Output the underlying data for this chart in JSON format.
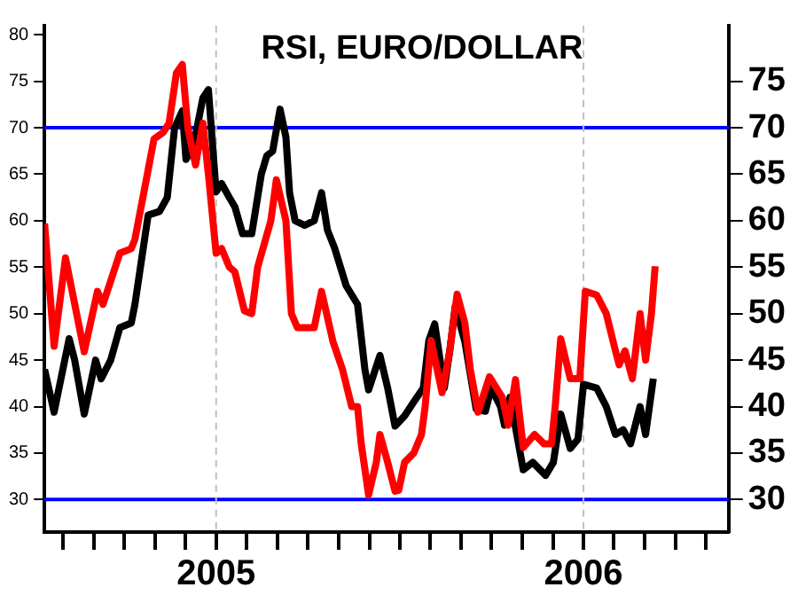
{
  "chart_data": {
    "type": "line",
    "title": "RSI, EURO/DOLLAR",
    "xlim": [
      2004.533,
      2006.395
    ],
    "xticks": [
      {
        "value": 2004.583,
        "label": null
      },
      {
        "value": 2004.667,
        "label": null
      },
      {
        "value": 2004.75,
        "label": null
      },
      {
        "value": 2004.833,
        "label": null
      },
      {
        "value": 2004.917,
        "label": null
      },
      {
        "value": 2005,
        "label": "2005"
      },
      {
        "value": 2005.083,
        "label": null
      },
      {
        "value": 2005.167,
        "label": null
      },
      {
        "value": 2005.25,
        "label": null
      },
      {
        "value": 2005.333,
        "label": null
      },
      {
        "value": 2005.417,
        "label": null
      },
      {
        "value": 2005.5,
        "label": null
      },
      {
        "value": 2005.583,
        "label": null
      },
      {
        "value": 2005.667,
        "label": null
      },
      {
        "value": 2005.75,
        "label": null
      },
      {
        "value": 2005.833,
        "label": null
      },
      {
        "value": 2005.917,
        "label": null
      },
      {
        "value": 2006,
        "label": "2006"
      },
      {
        "value": 2006.083,
        "label": null
      },
      {
        "value": 2006.167,
        "label": null
      },
      {
        "value": 2006.25,
        "label": null
      },
      {
        "value": 2006.333,
        "label": null
      }
    ],
    "ylim": [
      26.5,
      81
    ],
    "yticks": [
      30,
      35,
      40,
      45,
      50,
      55,
      60,
      65,
      70,
      75,
      80
    ],
    "y2lim": [
      26.5,
      81
    ],
    "y2ticks": [
      30,
      35,
      40,
      45,
      50,
      55,
      60,
      65,
      70,
      75
    ],
    "grid": false,
    "legend": false,
    "marker": "none",
    "line_style": "solid",
    "ref_lines": [
      {
        "axis": "y",
        "value": 70,
        "color": "#0000ff",
        "line_style": "solid"
      },
      {
        "axis": "y",
        "value": 30,
        "color": "#0000ff",
        "line_style": "solid"
      },
      {
        "axis": "x",
        "value": 2005,
        "color": "#c0c0c0",
        "line_style": "dashed"
      },
      {
        "axis": "x",
        "value": 2006,
        "color": "#c0c0c0",
        "line_style": "dashed"
      }
    ],
    "series": [
      {
        "color": "#ff0000",
        "x": [
          2004.533,
          2004.559,
          2004.59,
          2004.641,
          2004.677,
          2004.692,
          2004.738,
          2004.769,
          2004.779,
          2004.831,
          2004.856,
          2004.872,
          2004.892,
          2004.908,
          2004.923,
          2004.944,
          2004.964,
          2004.979,
          2005,
          2005.015,
          2005.036,
          2005.051,
          2005.077,
          2005.097,
          2005.113,
          2005.149,
          2005.164,
          2005.19,
          2005.205,
          2005.221,
          2005.267,
          2005.287,
          2005.318,
          2005.344,
          2005.369,
          2005.385,
          2005.395,
          2005.415,
          2005.436,
          2005.446,
          2005.467,
          2005.487,
          2005.497,
          2005.513,
          2005.538,
          2005.559,
          2005.569,
          2005.585,
          2005.615,
          2005.636,
          2005.656,
          2005.677,
          2005.692,
          2005.713,
          2005.744,
          2005.779,
          2005.795,
          2005.815,
          2005.836,
          2005.867,
          2005.892,
          2005.913,
          2005.923,
          2005.938,
          2005.964,
          2005.99,
          2006.005,
          2006.036,
          2006.062,
          2006.087,
          2006.097,
          2006.113,
          2006.133,
          2006.154,
          2006.169,
          2006.185,
          2006.195
        ],
        "values": [
          59.7,
          46.5,
          56,
          45.9,
          52.4,
          51,
          56.5,
          57,
          58,
          68.8,
          69.5,
          70.5,
          75.9,
          76.8,
          70,
          66,
          70.5,
          65,
          56.5,
          57,
          55,
          54.5,
          50.3,
          50,
          55,
          60,
          64.4,
          60,
          50,
          48.5,
          48.5,
          52.4,
          47,
          44,
          40,
          40,
          36,
          30.5,
          34,
          37,
          34,
          30.9,
          31,
          34,
          35,
          37,
          40,
          47.1,
          41.5,
          46,
          52.1,
          49,
          44,
          39.4,
          43.2,
          41,
          38,
          42.9,
          35.6,
          37,
          36,
          36,
          40,
          47.3,
          43,
          43,
          52.4,
          52,
          50,
          46,
          44.5,
          46,
          43,
          50,
          45,
          50,
          55.1
        ]
      },
      {
        "color": "#000000",
        "x": [
          2004.533,
          2004.559,
          2004.6,
          2004.615,
          2004.641,
          2004.656,
          2004.672,
          2004.687,
          2004.713,
          2004.738,
          2004.769,
          2004.779,
          2004.815,
          2004.846,
          2004.867,
          2004.887,
          2004.908,
          2004.918,
          2004.938,
          2004.964,
          2004.979,
          2005,
          2005.015,
          2005.036,
          2005.051,
          2005.072,
          2005.097,
          2005.123,
          2005.138,
          2005.154,
          2005.174,
          2005.19,
          2005.2,
          2005.215,
          2005.241,
          2005.267,
          2005.287,
          2005.303,
          2005.323,
          2005.354,
          2005.385,
          2005.405,
          2005.415,
          2005.446,
          2005.467,
          2005.487,
          2005.513,
          2005.538,
          2005.564,
          2005.579,
          2005.595,
          2005.621,
          2005.636,
          2005.651,
          2005.677,
          2005.708,
          2005.733,
          2005.749,
          2005.774,
          2005.785,
          2005.8,
          2005.836,
          2005.862,
          2005.897,
          2005.918,
          2005.938,
          2005.964,
          2005.985,
          2006,
          2006.036,
          2006.062,
          2006.087,
          2006.108,
          2006.128,
          2006.154,
          2006.169,
          2006.19
        ],
        "values": [
          44,
          39.4,
          47.3,
          45,
          39.2,
          42,
          45,
          43,
          45,
          48.5,
          49,
          51,
          60.6,
          61,
          62.5,
          70,
          71.8,
          66.6,
          68,
          73.2,
          74.1,
          63.1,
          64,
          62.5,
          61.5,
          58.6,
          58.6,
          65,
          67,
          67.5,
          72,
          69,
          63,
          60,
          59.5,
          60,
          63,
          59,
          57,
          53,
          51,
          44,
          41.8,
          45.5,
          42,
          37.9,
          39,
          40.5,
          42,
          47.1,
          48.9,
          42,
          46,
          50.8,
          47,
          39.7,
          39.5,
          42,
          40,
          38,
          41,
          33.2,
          34,
          32.6,
          34,
          39.2,
          35.5,
          36.5,
          42.4,
          42,
          40,
          37,
          37.5,
          36,
          40,
          37,
          43
        ]
      }
    ]
  }
}
